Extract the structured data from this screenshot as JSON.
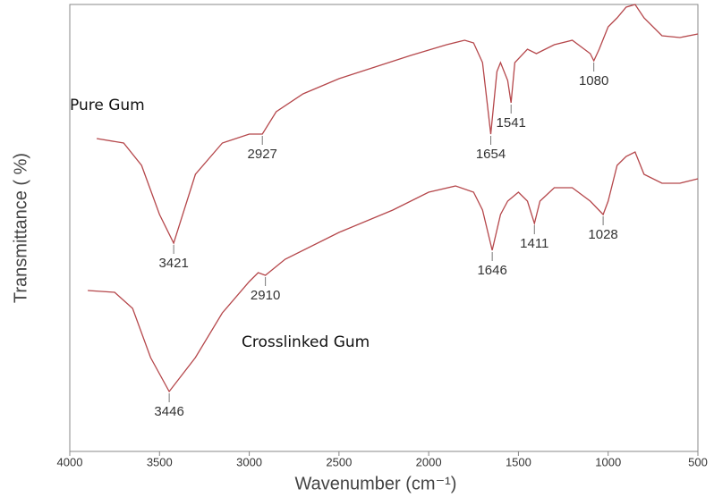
{
  "chart_data": {
    "type": "line",
    "x_label": "Wavenumber (cm⁻¹)",
    "y_label": "Transmittance ( %)",
    "xlim": [
      4000,
      500
    ],
    "xticks": [
      4000,
      3500,
      3000,
      2500,
      2000,
      1500,
      1000,
      500
    ],
    "ylim": [
      0,
      100
    ],
    "series": [
      {
        "name": "Pure Gum",
        "color": "#b5474b",
        "x": [
          3850,
          3700,
          3600,
          3500,
          3421,
          3300,
          3150,
          3000,
          2927,
          2850,
          2700,
          2500,
          2300,
          2100,
          1900,
          1800,
          1750,
          1700,
          1654,
          1620,
          1600,
          1560,
          1541,
          1520,
          1450,
          1400,
          1300,
          1200,
          1100,
          1080,
          1050,
          1000,
          950,
          900,
          850,
          800,
          700,
          600,
          500
        ],
        "values": [
          70,
          69,
          64,
          53,
          46.6,
          62,
          69,
          71,
          71,
          76,
          80,
          83.4,
          86,
          88.6,
          91,
          92,
          91.4,
          87,
          71,
          85,
          87,
          83,
          78,
          87,
          90,
          89,
          91,
          92,
          89,
          87.4,
          90,
          95,
          97,
          99.4,
          100,
          97,
          93,
          92.6,
          93.4
        ],
        "peaks": [
          3421,
          2927,
          1654,
          1541,
          1080
        ]
      },
      {
        "name": "Crosslinked Gum",
        "color": "#b5474b",
        "x": [
          3900,
          3750,
          3650,
          3550,
          3446,
          3300,
          3150,
          3000,
          2950,
          2910,
          2800,
          2500,
          2200,
          2000,
          1850,
          1750,
          1700,
          1646,
          1600,
          1560,
          1500,
          1450,
          1411,
          1380,
          1300,
          1200,
          1100,
          1028,
          1000,
          950,
          900,
          850,
          800,
          700,
          600,
          500
        ],
        "values": [
          36,
          35.6,
          32,
          21,
          13.4,
          21,
          31,
          38,
          40,
          39.4,
          43,
          49,
          54,
          58,
          59.4,
          58,
          54,
          45,
          53,
          56,
          58,
          56,
          51,
          56,
          59,
          59,
          56,
          53,
          56,
          64,
          66,
          67,
          62,
          60,
          60,
          61
        ],
        "peaks": [
          3446,
          2910,
          1646,
          1411,
          1028
        ]
      }
    ]
  }
}
